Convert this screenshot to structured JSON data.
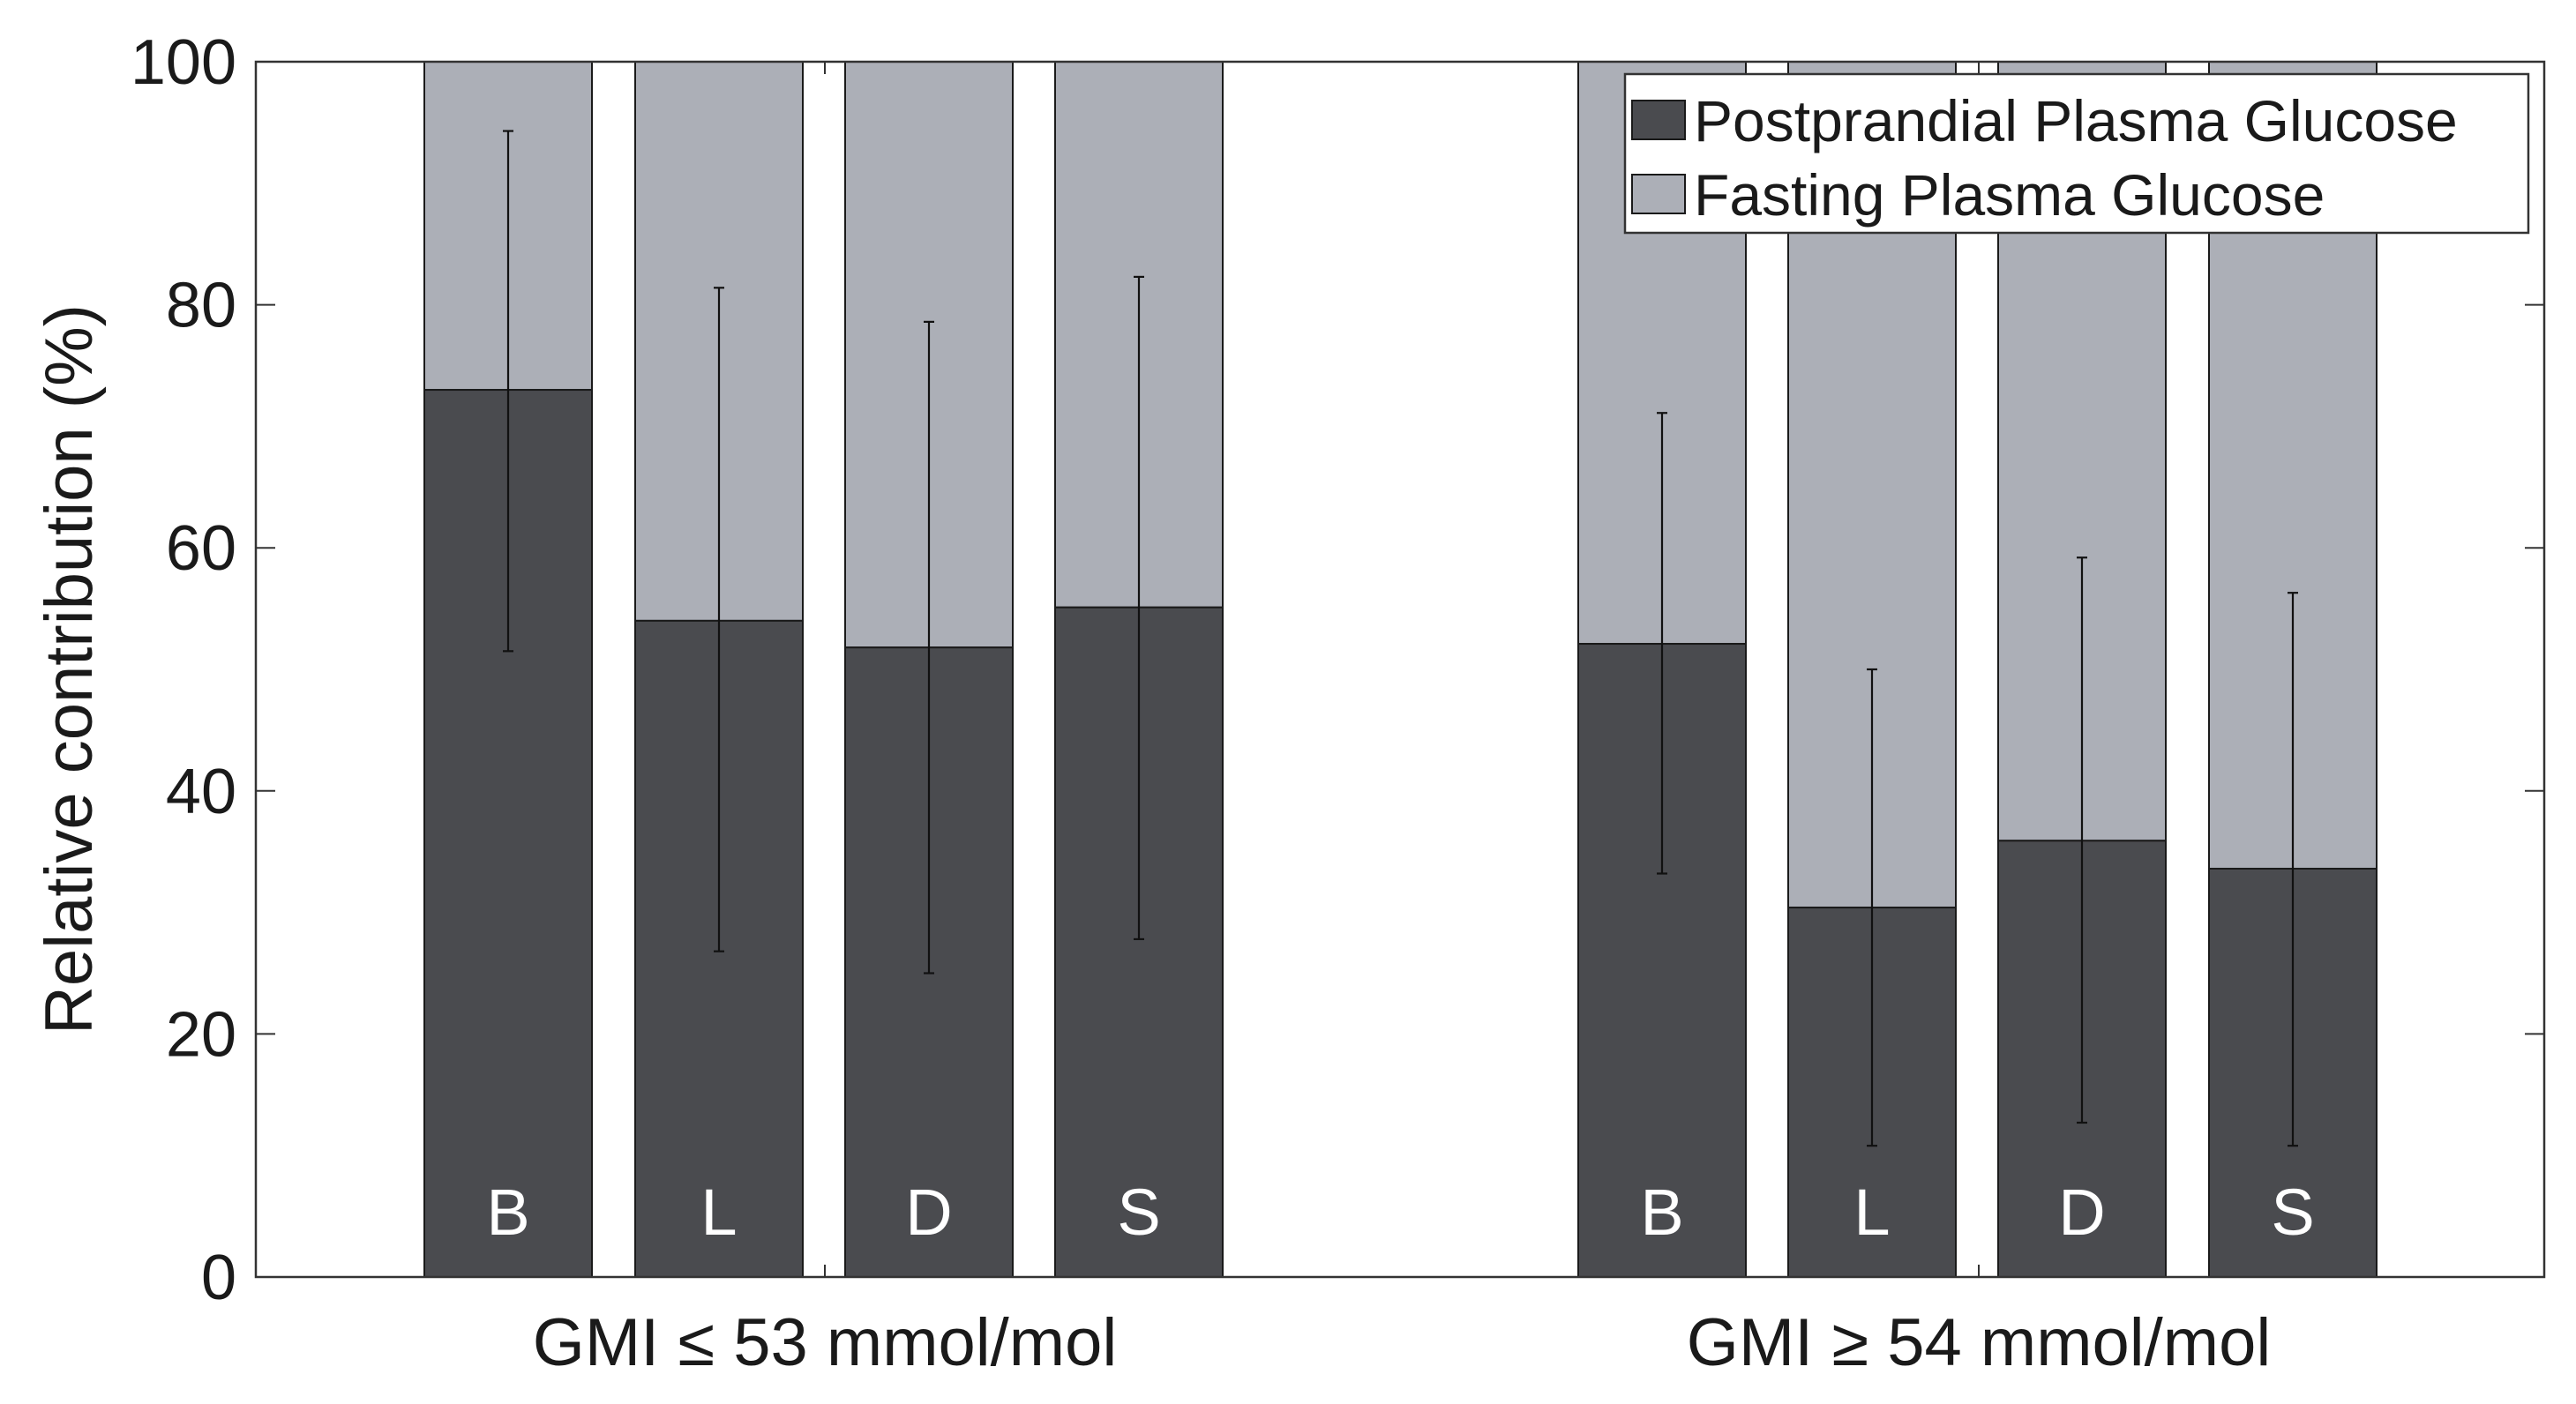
{
  "chart_data": {
    "type": "bar",
    "stacked": true,
    "ylabel": "Relative contribution (%)",
    "xlabel": "",
    "ylim": [
      0,
      100
    ],
    "yticks": [
      0,
      20,
      40,
      60,
      80,
      100
    ],
    "groups": [
      {
        "label": "GMI ≤ 53 mmol/mol",
        "bars": [
          {
            "letter": "B",
            "postprandial": 73,
            "fasting": 27,
            "err_low": 51.5,
            "err_high": 94.3
          },
          {
            "letter": "L",
            "postprandial": 54,
            "fasting": 46,
            "err_low": 26.8,
            "err_high": 81.4
          },
          {
            "letter": "D",
            "postprandial": 51.8,
            "fasting": 48.2,
            "err_low": 25,
            "err_high": 78.6
          },
          {
            "letter": "S",
            "postprandial": 55.1,
            "fasting": 44.9,
            "err_low": 27.8,
            "err_high": 82.3
          }
        ]
      },
      {
        "label": "GMI ≥ 54 mmol/mol",
        "bars": [
          {
            "letter": "B",
            "postprandial": 52.1,
            "fasting": 47.9,
            "err_low": 33.2,
            "err_high": 71.1
          },
          {
            "letter": "L",
            "postprandial": 30.4,
            "fasting": 69.6,
            "err_low": 10.8,
            "err_high": 50
          },
          {
            "letter": "D",
            "postprandial": 35.9,
            "fasting": 64.1,
            "err_low": 12.7,
            "err_high": 59.2
          },
          {
            "letter": "S",
            "postprandial": 33.6,
            "fasting": 66.4,
            "err_low": 10.8,
            "err_high": 56.3
          }
        ]
      }
    ],
    "series": [
      {
        "name": "Postprandial Plasma Glucose",
        "key": "postprandial",
        "color": "#4a4b4f"
      },
      {
        "name": "Fasting Plasma Glucose",
        "key": "fasting",
        "color": "#acafb7"
      }
    ],
    "legend_position": "top-right",
    "grid": false
  }
}
